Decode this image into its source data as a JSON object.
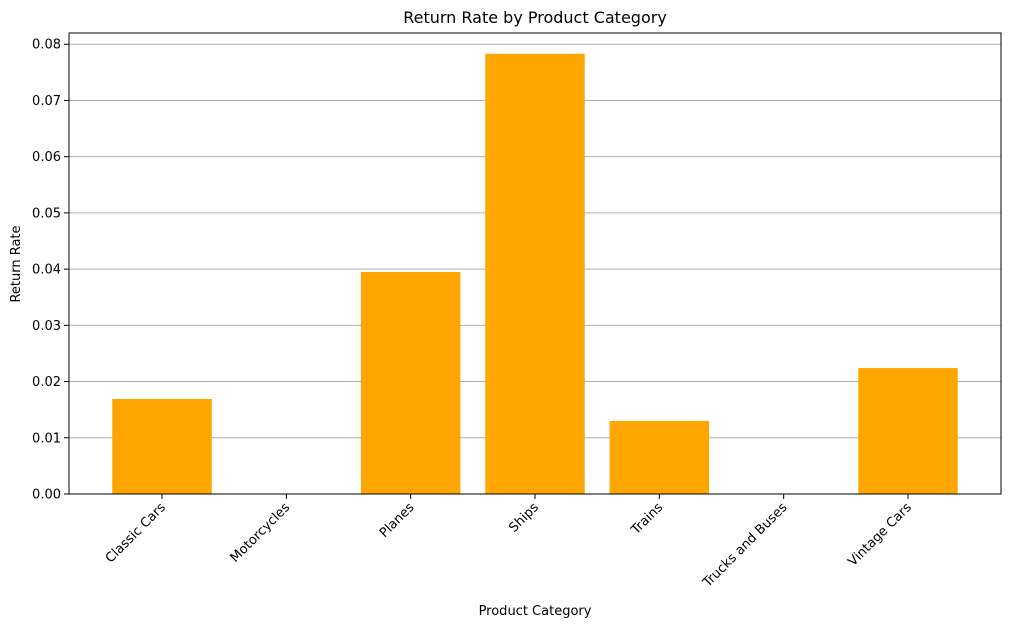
{
  "chart_data": {
    "type": "bar",
    "title": "Return Rate by Product Category",
    "xlabel": "Product Category",
    "ylabel": "Return Rate",
    "categories": [
      "Classic Cars",
      "Motorcycles",
      "Planes",
      "Ships",
      "Trains",
      "Trucks and Buses",
      "Vintage Cars"
    ],
    "values": [
      0.0169,
      0.0,
      0.0395,
      0.0783,
      0.013,
      0.0,
      0.0224
    ],
    "ylim": [
      0,
      0.082
    ],
    "yticks": [
      "0.00",
      "0.01",
      "0.02",
      "0.03",
      "0.04",
      "0.05",
      "0.06",
      "0.07",
      "0.08"
    ],
    "ytick_values": [
      0,
      0.01,
      0.02,
      0.03,
      0.04,
      0.05,
      0.06,
      0.07,
      0.08
    ],
    "grid": "y-axis",
    "bar_color": "#ffa500",
    "grid_color": "#b0b0b0"
  }
}
